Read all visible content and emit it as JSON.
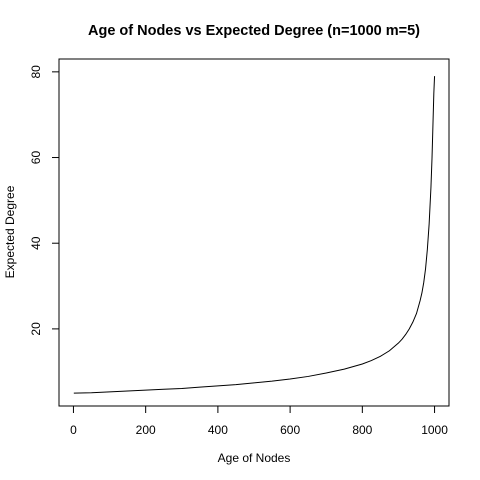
{
  "chart_data": {
    "type": "line",
    "title": "Age of Nodes vs Expected Degree (n=1000 m=5)",
    "xlabel": "Age of Nodes",
    "ylabel": "Expected Degree",
    "xlim": [
      -40,
      1040
    ],
    "ylim": [
      2,
      83
    ],
    "x_ticks": [
      0,
      200,
      400,
      600,
      800,
      1000
    ],
    "y_ticks": [
      20,
      40,
      60,
      80
    ],
    "grid": false,
    "legend": "none",
    "line_color": "#000000",
    "series": [
      {
        "x": [
          1,
          50,
          100,
          150,
          200,
          250,
          300,
          350,
          400,
          450,
          500,
          550,
          600,
          650,
          700,
          750,
          800,
          825,
          850,
          875,
          900,
          910,
          920,
          930,
          940,
          950,
          960,
          965,
          970,
          975,
          980,
          985,
          990,
          993,
          995,
          997,
          998,
          999,
          1000
        ],
        "y": [
          5.0,
          5.1,
          5.3,
          5.5,
          5.7,
          5.9,
          6.1,
          6.4,
          6.7,
          7.0,
          7.4,
          7.8,
          8.3,
          8.9,
          9.7,
          10.6,
          11.8,
          12.6,
          13.6,
          14.9,
          16.7,
          17.6,
          18.7,
          20.0,
          21.6,
          23.6,
          26.6,
          28.4,
          30.8,
          34.0,
          38.5,
          44.5,
          53.0,
          60.0,
          66.0,
          72.0,
          75.0,
          77.0,
          79.0
        ]
      }
    ]
  }
}
